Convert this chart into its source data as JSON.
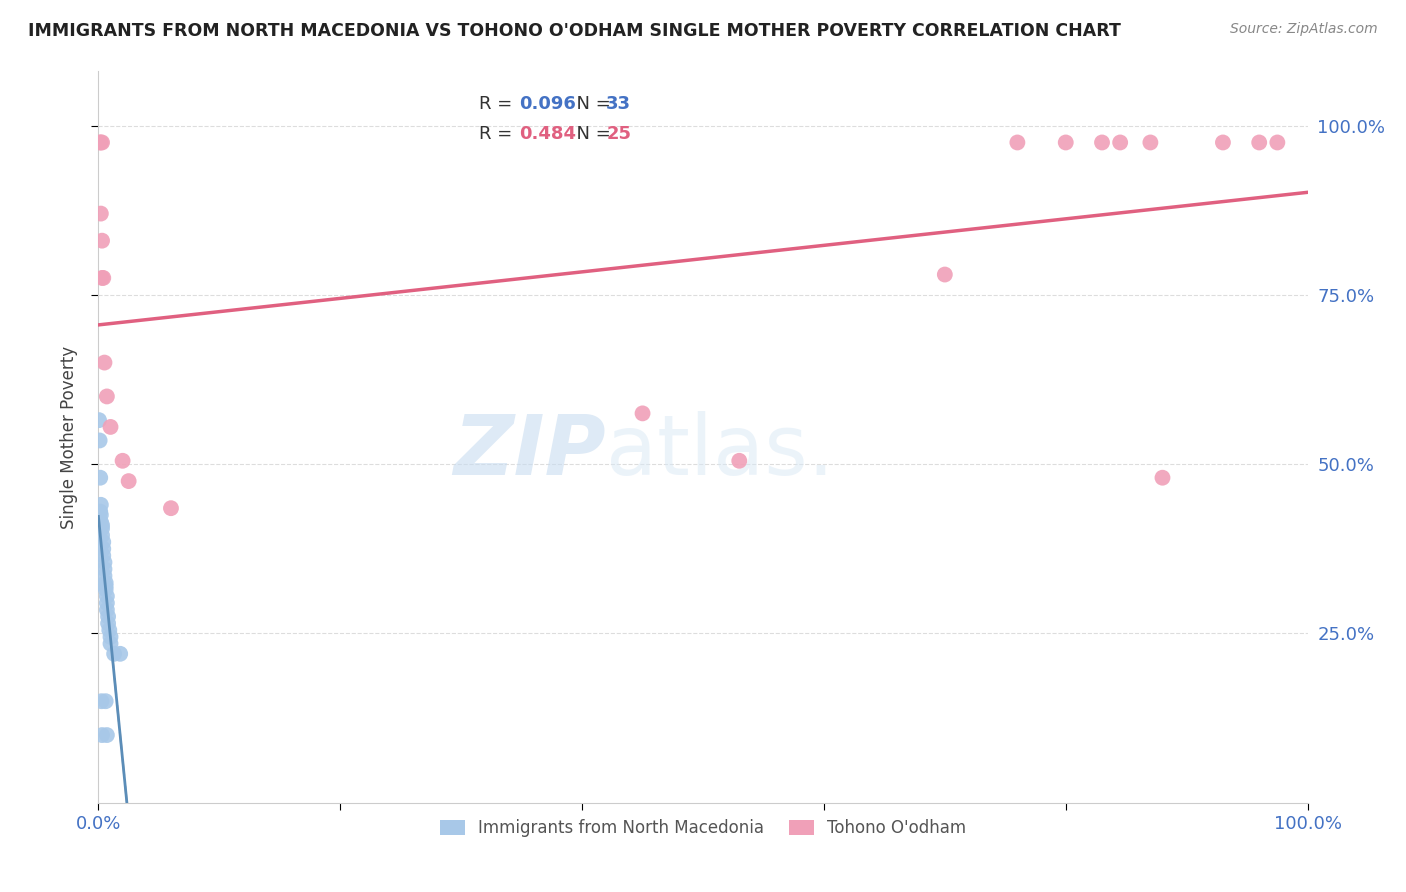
{
  "title": "IMMIGRANTS FROM NORTH MACEDONIA VS TOHONO O'ODHAM SINGLE MOTHER POVERTY CORRELATION CHART",
  "source": "Source: ZipAtlas.com",
  "ylabel": "Single Mother Poverty",
  "r_blue": 0.096,
  "n_blue": 33,
  "r_pink": 0.484,
  "n_pink": 25,
  "blue_color": "#A8C8E8",
  "pink_color": "#F0A0B8",
  "blue_line_color": "#5B8DB8",
  "pink_line_color": "#E06080",
  "gray_dash_color": "#AAAAAA",
  "blue_scatter": [
    [
      0.0005,
      0.565
    ],
    [
      0.001,
      0.535
    ],
    [
      0.0015,
      0.48
    ],
    [
      0.0015,
      0.43
    ],
    [
      0.002,
      0.425
    ],
    [
      0.002,
      0.415
    ],
    [
      0.002,
      0.44
    ],
    [
      0.003,
      0.41
    ],
    [
      0.003,
      0.405
    ],
    [
      0.003,
      0.395
    ],
    [
      0.004,
      0.385
    ],
    [
      0.004,
      0.375
    ],
    [
      0.004,
      0.365
    ],
    [
      0.005,
      0.355
    ],
    [
      0.005,
      0.345
    ],
    [
      0.005,
      0.335
    ],
    [
      0.006,
      0.325
    ],
    [
      0.006,
      0.315
    ],
    [
      0.006,
      0.32
    ],
    [
      0.007,
      0.305
    ],
    [
      0.007,
      0.295
    ],
    [
      0.007,
      0.285
    ],
    [
      0.008,
      0.275
    ],
    [
      0.008,
      0.265
    ],
    [
      0.009,
      0.255
    ],
    [
      0.01,
      0.245
    ],
    [
      0.01,
      0.235
    ],
    [
      0.013,
      0.22
    ],
    [
      0.018,
      0.22
    ],
    [
      0.003,
      0.1
    ],
    [
      0.007,
      0.1
    ],
    [
      0.0025,
      0.15
    ],
    [
      0.006,
      0.15
    ]
  ],
  "pink_scatter": [
    [
      0.001,
      0.975
    ],
    [
      0.002,
      0.975
    ],
    [
      0.003,
      0.975
    ],
    [
      0.002,
      0.87
    ],
    [
      0.003,
      0.83
    ],
    [
      0.003,
      0.775
    ],
    [
      0.004,
      0.775
    ],
    [
      0.005,
      0.65
    ],
    [
      0.007,
      0.6
    ],
    [
      0.01,
      0.555
    ],
    [
      0.02,
      0.505
    ],
    [
      0.025,
      0.475
    ],
    [
      0.06,
      0.435
    ],
    [
      0.45,
      0.575
    ],
    [
      0.53,
      0.505
    ],
    [
      0.7,
      0.78
    ],
    [
      0.76,
      0.975
    ],
    [
      0.8,
      0.975
    ],
    [
      0.83,
      0.975
    ],
    [
      0.845,
      0.975
    ],
    [
      0.87,
      0.975
    ],
    [
      0.88,
      0.48
    ],
    [
      0.93,
      0.975
    ],
    [
      0.96,
      0.975
    ],
    [
      0.975,
      0.975
    ]
  ],
  "watermark_zip": "ZIP",
  "watermark_atlas": "atlas.",
  "xlim": [
    0,
    1
  ],
  "ylim": [
    0,
    1.08
  ],
  "yticks": [
    0.25,
    0.5,
    0.75,
    1.0
  ],
  "ytick_labels": [
    "25.0%",
    "50.0%",
    "75.0%",
    "100.0%"
  ]
}
